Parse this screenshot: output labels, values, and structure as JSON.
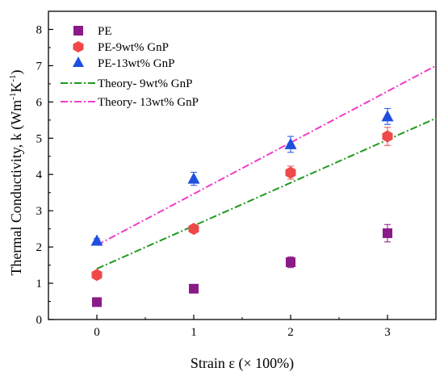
{
  "chart_data": {
    "type": "scatter",
    "xlabel": "Strain ε (× 100%)",
    "ylabel_main": "Thermal Conductivity, k (Wm",
    "ylabel_sup1": "-1",
    "ylabel_mid": "K",
    "ylabel_sup2": "-1",
    "ylabel_end": ")",
    "xlim": [
      -0.5,
      3.5
    ],
    "ylim": [
      0,
      8.5
    ],
    "x_ticks": [
      0,
      1,
      2,
      3
    ],
    "y_ticks": [
      0,
      1,
      2,
      3,
      4,
      5,
      6,
      7,
      8
    ],
    "grid": false,
    "legend_position": "top-left",
    "series": [
      {
        "name": "PE",
        "marker": "square",
        "color": "#8B1A89",
        "points": [
          {
            "x": 0,
            "y": 0.48,
            "err": 0.06
          },
          {
            "x": 1,
            "y": 0.85,
            "err": 0.06
          },
          {
            "x": 2,
            "y": 1.58,
            "err": 0.15
          },
          {
            "x": 3,
            "y": 2.38,
            "err": 0.24
          }
        ]
      },
      {
        "name": "PE-9wt% GnP",
        "marker": "hexagon",
        "color": "#F04848",
        "points": [
          {
            "x": 0,
            "y": 1.23,
            "err": 0.06
          },
          {
            "x": 1,
            "y": 2.5,
            "err": 0.08
          },
          {
            "x": 2,
            "y": 4.05,
            "err": 0.18
          },
          {
            "x": 3,
            "y": 5.05,
            "err": 0.25
          }
        ]
      },
      {
        "name": "PE-13wt% GnP",
        "marker": "triangle",
        "color": "#1F4FE0",
        "points": [
          {
            "x": 0,
            "y": 2.17,
            "err": 0.06
          },
          {
            "x": 1,
            "y": 3.88,
            "err": 0.18
          },
          {
            "x": 2,
            "y": 4.83,
            "err": 0.22
          },
          {
            "x": 3,
            "y": 5.6,
            "err": 0.22
          }
        ]
      }
    ],
    "lines": [
      {
        "name": "Theory- 9wt% GnP",
        "color": "#1E9A1E",
        "dash": "9 3 2 3",
        "x": [
          0,
          3.5
        ],
        "y": [
          1.4,
          5.55
        ]
      },
      {
        "name": "Theory- 13wt% GnP",
        "color": "#F03CC8",
        "dash": "9 3 2 3",
        "x": [
          0,
          3.5
        ],
        "y": [
          2.05,
          7.0
        ]
      }
    ]
  }
}
